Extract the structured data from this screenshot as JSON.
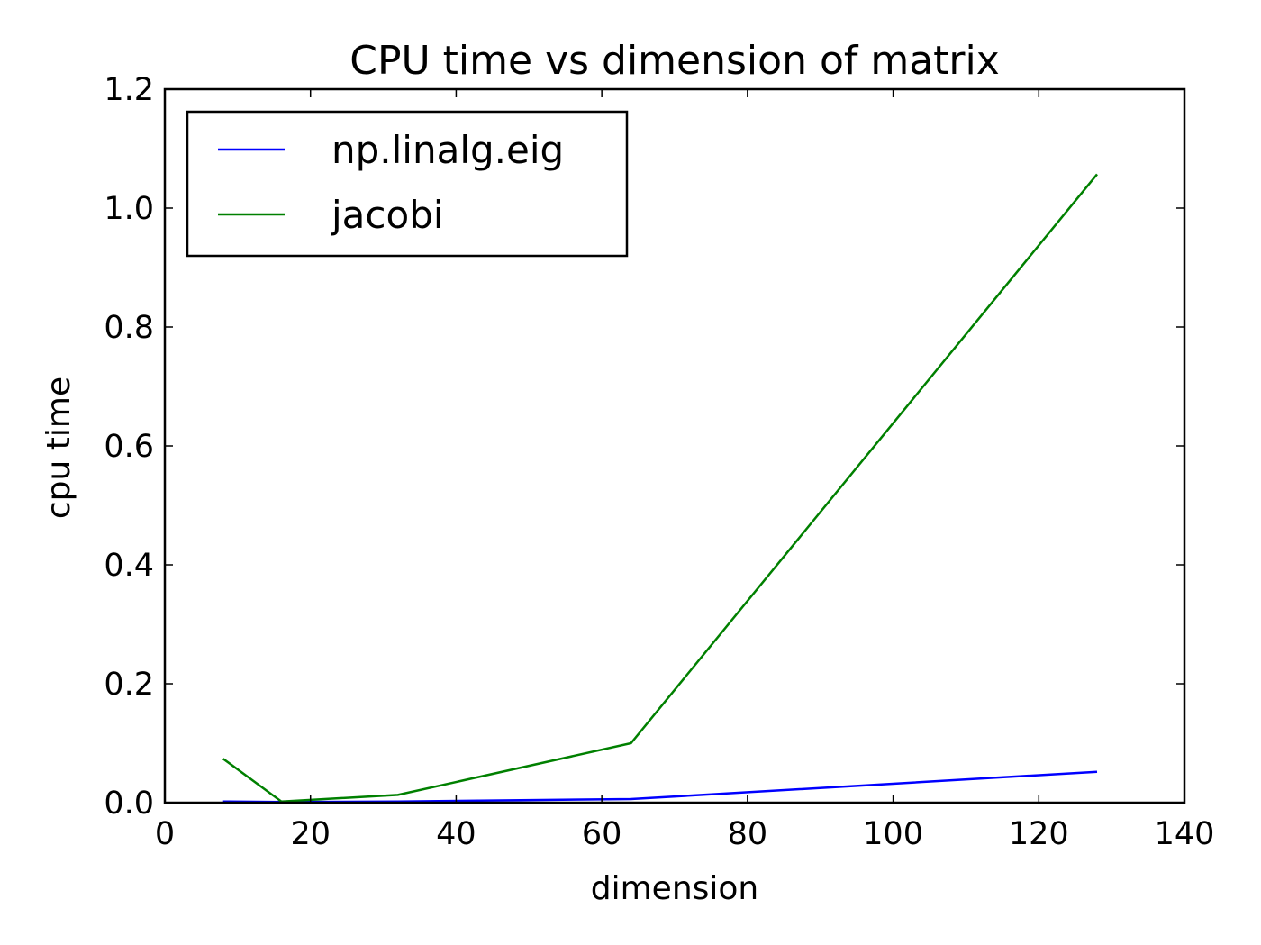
{
  "chart_data": {
    "type": "line",
    "title": "CPU time vs dimension of matrix",
    "xlabel": "dimension",
    "ylabel": "cpu time",
    "xlim": [
      0,
      140
    ],
    "ylim": [
      0,
      1.2
    ],
    "xticks": [
      "0",
      "20",
      "40",
      "60",
      "80",
      "100",
      "120",
      "140"
    ],
    "yticks": [
      "0.0",
      "0.2",
      "0.4",
      "0.6",
      "0.8",
      "1.0",
      "1.2"
    ],
    "grid": false,
    "legend_position": "top-left",
    "x": [
      8,
      16,
      32,
      64,
      128
    ],
    "series": [
      {
        "name": "np.linalg.eig",
        "color": "#0000ff",
        "values": [
          0.002,
          0.001,
          0.002,
          0.006,
          0.052
        ]
      },
      {
        "name": "jacobi",
        "color": "#008000",
        "values": [
          0.074,
          0.002,
          0.013,
          0.1,
          1.057
        ]
      }
    ]
  }
}
